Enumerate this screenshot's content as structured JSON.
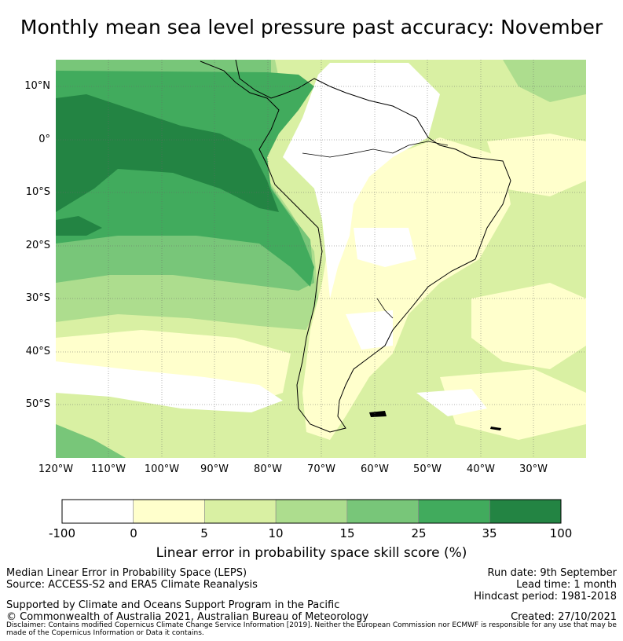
{
  "title": "Monthly mean sea level pressure past accuracy: November",
  "map": {
    "lat_labels": [
      "10°N",
      "0°",
      "10°S",
      "20°S",
      "30°S",
      "40°S",
      "50°S"
    ],
    "lon_labels": [
      "120°W",
      "110°W",
      "100°W",
      "90°W",
      "80°W",
      "70°W",
      "60°W",
      "50°W",
      "40°W",
      "30°W"
    ],
    "extent": {
      "lon_min": -120,
      "lon_max": -20,
      "lat_min": -60,
      "lat_max": 15
    }
  },
  "colorbar": {
    "ticks": [
      "-100",
      "0",
      "5",
      "10",
      "15",
      "25",
      "35",
      "100"
    ],
    "colors": [
      "#ffffff",
      "#ffffcc",
      "#d9f0a3",
      "#addd8e",
      "#78c679",
      "#41ab5d",
      "#238443"
    ],
    "label": "Linear error in probability space skill score (%)"
  },
  "footer": {
    "left": {
      "line1": "Median Linear Error in Probability Space (LEPS)",
      "line2": "Source: ACCESS-S2 and ERA5 Climate Reanalysis",
      "line3": "Supported by Climate and Oceans Support Program in the Pacific",
      "line4": "© Commonwealth of Australia 2021, Australian Bureau of Meteorology"
    },
    "right": {
      "run_date": "Run date: 9th September",
      "lead_time": "Lead time: 1 month",
      "hindcast": "Hindcast period: 1981-2018",
      "created": "Created: 27/10/2021"
    },
    "disclaimer": "Disclaimer: Contains modified Copernicus Climate Change Service Information [2019]. Neither the European Commission nor ECMWF is responsible for any use that may be made of the Copernicus Information or Data it contains."
  }
}
